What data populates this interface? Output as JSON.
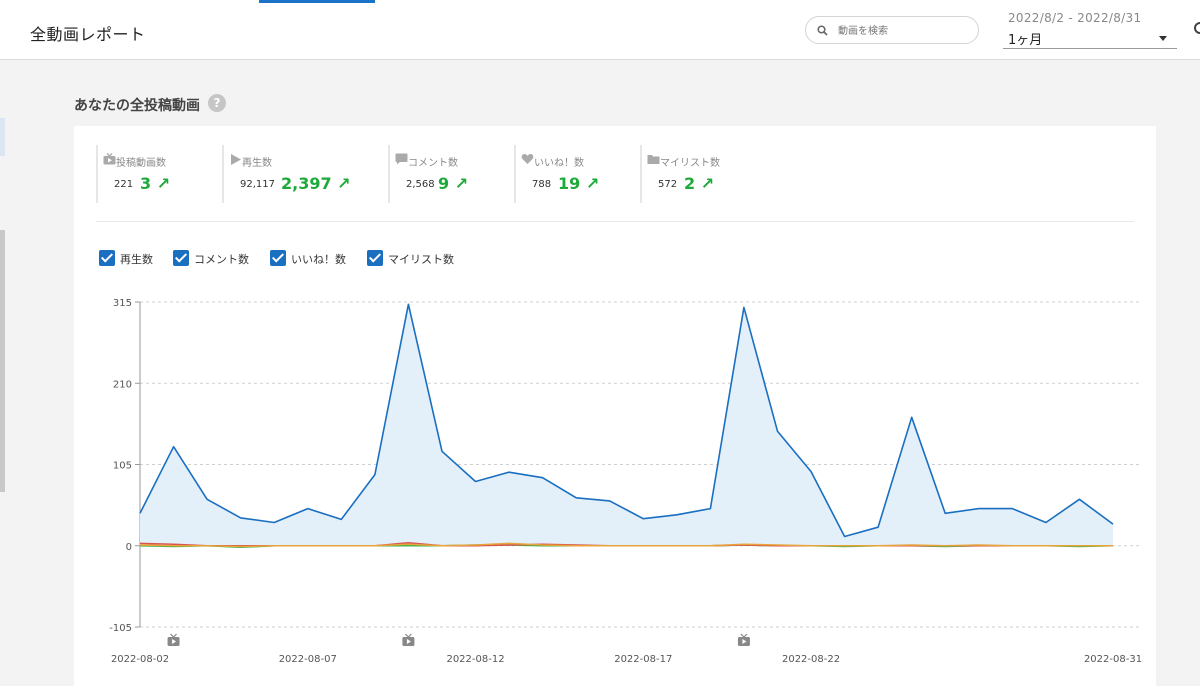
{
  "header": {
    "title": "全動画レポート",
    "search_placeholder": "動画を検索",
    "date_range": "2022/8/2 - 2022/8/31",
    "period": "1ヶ月"
  },
  "section": {
    "title": "あなたの全投稿動画",
    "help": "?"
  },
  "stats": [
    {
      "label": "投稿動画数",
      "total": "221",
      "diff": "3 ↗",
      "icon": "tv-icon"
    },
    {
      "label": "再生数",
      "total": "92,117",
      "diff": "2,397 ↗",
      "icon": "play-icon"
    },
    {
      "label": "コメント数",
      "total": "2,568",
      "diff": "9 ↗",
      "icon": "comment-icon"
    },
    {
      "label": "いいね！数",
      "total": "788",
      "diff": "19 ↗",
      "icon": "heart-icon"
    },
    {
      "label": "マイリスト数",
      "total": "572",
      "diff": "2 ↗",
      "icon": "folder-icon"
    }
  ],
  "legend": [
    {
      "label": "再生数",
      "checked": true
    },
    {
      "label": "コメント数",
      "checked": true
    },
    {
      "label": "いいね！数",
      "checked": true
    },
    {
      "label": "マイリスト数",
      "checked": true
    }
  ],
  "chart_data": {
    "type": "area",
    "x": [
      "2022-08-02",
      "2022-08-03",
      "2022-08-04",
      "2022-08-05",
      "2022-08-06",
      "2022-08-07",
      "2022-08-08",
      "2022-08-09",
      "2022-08-10",
      "2022-08-11",
      "2022-08-12",
      "2022-08-13",
      "2022-08-14",
      "2022-08-15",
      "2022-08-16",
      "2022-08-17",
      "2022-08-18",
      "2022-08-19",
      "2022-08-20",
      "2022-08-21",
      "2022-08-22",
      "2022-08-23",
      "2022-08-24",
      "2022-08-25",
      "2022-08-26",
      "2022-08-27",
      "2022-08-28",
      "2022-08-29",
      "2022-08-30",
      "2022-08-31"
    ],
    "x_tick_labels": [
      "2022-08-02",
      "2022-08-07",
      "2022-08-12",
      "2022-08-17",
      "2022-08-22",
      "2022-08-31"
    ],
    "y_ticks": [
      315,
      210,
      105,
      0,
      -105
    ],
    "ylim": [
      -105,
      315
    ],
    "upload_markers": [
      "2022-08-03",
      "2022-08-10",
      "2022-08-20"
    ],
    "series": [
      {
        "name": "再生数",
        "color": "#1a6fc0",
        "values": [
          42,
          128,
          60,
          36,
          30,
          48,
          34,
          92,
          312,
          122,
          83,
          95,
          88,
          62,
          58,
          35,
          40,
          48,
          308,
          148,
          96,
          12,
          24,
          166,
          42,
          48,
          48,
          30,
          60,
          28
        ]
      },
      {
        "name": "コメント数",
        "color": "#e8a33a",
        "values": [
          1,
          0,
          0,
          -1,
          0,
          0,
          0,
          0,
          2,
          0,
          1,
          3,
          1,
          0,
          0,
          0,
          0,
          0,
          2,
          1,
          0,
          0,
          0,
          1,
          0,
          1,
          0,
          0,
          0,
          0
        ]
      },
      {
        "name": "いいね！数",
        "color": "#d9534f",
        "values": [
          3,
          2,
          0,
          0,
          0,
          0,
          0,
          0,
          4,
          0,
          0,
          1,
          2,
          1,
          0,
          0,
          0,
          0,
          1,
          0,
          0,
          0,
          0,
          0,
          0,
          0,
          0,
          0,
          0,
          0
        ]
      },
      {
        "name": "マイリスト数",
        "color": "#3cb34a",
        "values": [
          0,
          -1,
          0,
          -2,
          0,
          0,
          0,
          0,
          0,
          0,
          1,
          1,
          0,
          0,
          0,
          0,
          0,
          0,
          1,
          0,
          0,
          -1,
          0,
          0,
          -1,
          0,
          0,
          0,
          -1,
          0
        ]
      }
    ]
  }
}
